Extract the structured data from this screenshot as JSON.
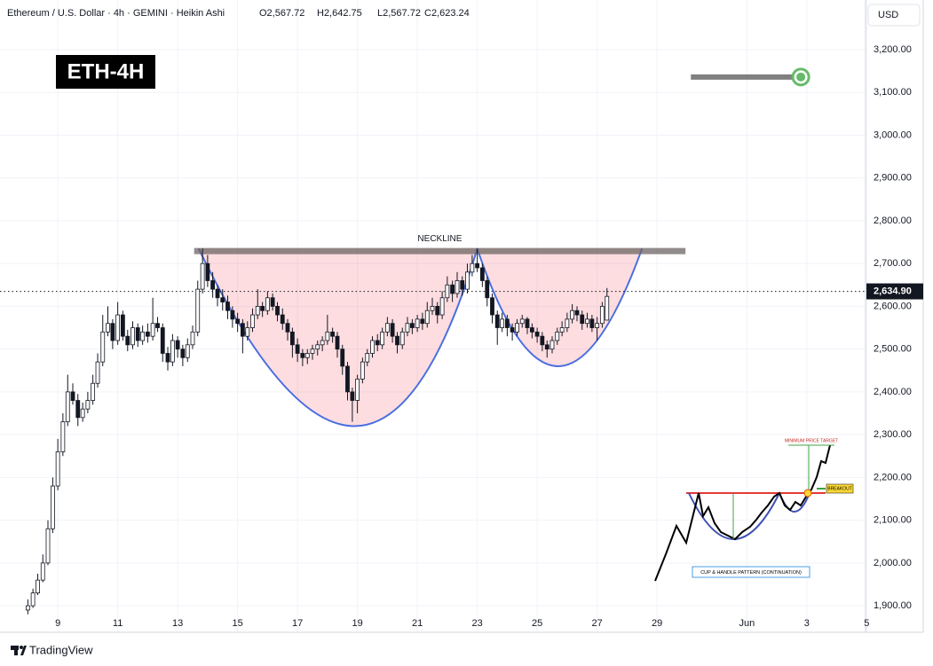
{
  "chart_data": {
    "type": "candlestick",
    "title": "Ethereum / U.S. Dollar · 4h · GEMINI · Heikin Ashi",
    "ohlc_labels": [
      "O2,567.72",
      "H2,642.75",
      "L2,567.72",
      "C2,623.24"
    ],
    "currency": "USD",
    "color_up": "#ffffff",
    "color_down": "#131722",
    "grid": true,
    "xlim": [
      7.07,
      35.96
    ],
    "ylim": [
      1838,
      3316
    ],
    "xticks": [
      9,
      11,
      13,
      15,
      17,
      19,
      21,
      23,
      25,
      27,
      29,
      {
        "value": 32,
        "label": "Jun"
      },
      {
        "value": 34,
        "label": "3"
      },
      {
        "value": 36,
        "label": "5"
      }
    ],
    "yticks": [
      {
        "value": 1900,
        "label": "1,900.00"
      },
      {
        "value": 2000,
        "label": "2,000.00"
      },
      {
        "value": 2100,
        "label": "2,100.00"
      },
      {
        "value": 2200,
        "label": "2,200.00"
      },
      {
        "value": 2300,
        "label": "2,300.00"
      },
      {
        "value": 2400,
        "label": "2,400.00"
      },
      {
        "value": 2500,
        "label": "2,500.00"
      },
      {
        "value": 2600,
        "label": "2,600.00"
      },
      {
        "value": 2700,
        "label": "2,700.00"
      },
      {
        "value": 2800,
        "label": "2,800.00"
      },
      {
        "value": 2900,
        "label": "2,900.00"
      },
      {
        "value": 3000,
        "label": "3,000.00"
      },
      {
        "value": 3100,
        "label": "3,100.00"
      },
      {
        "value": 3200,
        "label": "3,200.00"
      }
    ],
    "last_price": {
      "value": 2634.9,
      "label": "2,634.90"
    },
    "x": [
      8,
      8.17,
      8.33,
      8.5,
      8.67,
      8.83,
      9,
      9.17,
      9.33,
      9.5,
      9.67,
      9.83,
      10,
      10.17,
      10.33,
      10.5,
      10.67,
      10.83,
      11,
      11.17,
      11.33,
      11.5,
      11.67,
      11.83,
      12,
      12.17,
      12.33,
      12.5,
      12.67,
      12.83,
      13,
      13.17,
      13.33,
      13.5,
      13.67,
      13.83,
      14,
      14.17,
      14.33,
      14.5,
      14.67,
      14.83,
      15,
      15.17,
      15.33,
      15.5,
      15.67,
      15.83,
      16,
      16.17,
      16.33,
      16.5,
      16.67,
      16.83,
      17,
      17.17,
      17.33,
      17.5,
      17.67,
      17.83,
      18,
      18.17,
      18.33,
      18.5,
      18.67,
      18.83,
      19,
      19.17,
      19.33,
      19.5,
      19.67,
      19.83,
      20,
      20.17,
      20.33,
      20.5,
      20.67,
      20.83,
      21,
      21.17,
      21.33,
      21.5,
      21.67,
      21.83,
      22,
      22.17,
      22.33,
      22.5,
      22.67,
      22.83,
      23,
      23.17,
      23.33,
      23.5,
      23.67,
      23.83,
      24,
      24.17,
      24.33,
      24.5,
      24.67,
      24.83,
      25,
      25.17,
      25.33,
      25.5,
      25.67,
      25.83,
      26,
      26.17,
      26.33,
      26.5,
      26.67,
      26.83,
      27,
      27.17,
      27.33
    ],
    "ohlc": [
      [
        1890,
        1915,
        1880,
        1900
      ],
      [
        1900,
        1940,
        1895,
        1930
      ],
      [
        1930,
        1975,
        1925,
        1960
      ],
      [
        1960,
        2020,
        1955,
        2000
      ],
      [
        2000,
        2100,
        1995,
        2080
      ],
      [
        2080,
        2200,
        2070,
        2180
      ],
      [
        2180,
        2290,
        2170,
        2260
      ],
      [
        2260,
        2350,
        2250,
        2330
      ],
      [
        2330,
        2440,
        2320,
        2400
      ],
      [
        2400,
        2420,
        2370,
        2380
      ],
      [
        2380,
        2395,
        2320,
        2340
      ],
      [
        2340,
        2375,
        2330,
        2360
      ],
      [
        2360,
        2400,
        2350,
        2380
      ],
      [
        2380,
        2440,
        2370,
        2420
      ],
      [
        2420,
        2490,
        2410,
        2470
      ],
      [
        2470,
        2580,
        2460,
        2540
      ],
      [
        2540,
        2600,
        2530,
        2560
      ],
      [
        2560,
        2570,
        2500,
        2520
      ],
      [
        2520,
        2610,
        2510,
        2580
      ],
      [
        2580,
        2590,
        2520,
        2530
      ],
      [
        2530,
        2545,
        2495,
        2510
      ],
      [
        2510,
        2565,
        2500,
        2550
      ],
      [
        2550,
        2560,
        2505,
        2520
      ],
      [
        2520,
        2555,
        2510,
        2540
      ],
      [
        2540,
        2560,
        2515,
        2530
      ],
      [
        2530,
        2620,
        2520,
        2560
      ],
      [
        2560,
        2575,
        2540,
        2550
      ],
      [
        2550,
        2560,
        2470,
        2490
      ],
      [
        2490,
        2505,
        2450,
        2470
      ],
      [
        2470,
        2535,
        2460,
        2520
      ],
      [
        2520,
        2530,
        2480,
        2500
      ],
      [
        2500,
        2510,
        2460,
        2480
      ],
      [
        2480,
        2525,
        2470,
        2510
      ],
      [
        2510,
        2555,
        2500,
        2540
      ],
      [
        2540,
        2660,
        2530,
        2640
      ],
      [
        2640,
        2735,
        2630,
        2700
      ],
      [
        2700,
        2720,
        2645,
        2660
      ],
      [
        2660,
        2680,
        2620,
        2640
      ],
      [
        2640,
        2650,
        2600,
        2620
      ],
      [
        2620,
        2640,
        2590,
        2610
      ],
      [
        2610,
        2625,
        2570,
        2590
      ],
      [
        2590,
        2600,
        2550,
        2570
      ],
      [
        2570,
        2585,
        2540,
        2560
      ],
      [
        2560,
        2570,
        2490,
        2530
      ],
      [
        2530,
        2565,
        2520,
        2550
      ],
      [
        2550,
        2595,
        2540,
        2580
      ],
      [
        2580,
        2640,
        2570,
        2600
      ],
      [
        2600,
        2610,
        2575,
        2590
      ],
      [
        2590,
        2635,
        2580,
        2620
      ],
      [
        2620,
        2630,
        2590,
        2600
      ],
      [
        2600,
        2610,
        2565,
        2580
      ],
      [
        2580,
        2595,
        2545,
        2560
      ],
      [
        2560,
        2570,
        2520,
        2540
      ],
      [
        2540,
        2550,
        2480,
        2510
      ],
      [
        2510,
        2525,
        2470,
        2490
      ],
      [
        2490,
        2500,
        2460,
        2480
      ],
      [
        2480,
        2500,
        2465,
        2490
      ],
      [
        2490,
        2510,
        2475,
        2500
      ],
      [
        2500,
        2520,
        2485,
        2510
      ],
      [
        2510,
        2530,
        2495,
        2520
      ],
      [
        2520,
        2580,
        2510,
        2540
      ],
      [
        2540,
        2550,
        2515,
        2530
      ],
      [
        2530,
        2540,
        2480,
        2500
      ],
      [
        2500,
        2510,
        2440,
        2460
      ],
      [
        2460,
        2470,
        2380,
        2400
      ],
      [
        2400,
        2410,
        2330,
        2380
      ],
      [
        2380,
        2440,
        2350,
        2430
      ],
      [
        2430,
        2480,
        2420,
        2470
      ],
      [
        2470,
        2500,
        2460,
        2490
      ],
      [
        2490,
        2530,
        2480,
        2520
      ],
      [
        2520,
        2535,
        2495,
        2510
      ],
      [
        2510,
        2550,
        2500,
        2540
      ],
      [
        2540,
        2575,
        2530,
        2560
      ],
      [
        2560,
        2570,
        2515,
        2530
      ],
      [
        2530,
        2540,
        2490,
        2510
      ],
      [
        2510,
        2550,
        2500,
        2540
      ],
      [
        2540,
        2575,
        2530,
        2560
      ],
      [
        2560,
        2570,
        2535,
        2550
      ],
      [
        2550,
        2580,
        2540,
        2570
      ],
      [
        2570,
        2585,
        2545,
        2560
      ],
      [
        2560,
        2610,
        2550,
        2590
      ],
      [
        2590,
        2620,
        2580,
        2600
      ],
      [
        2600,
        2610,
        2560,
        2580
      ],
      [
        2580,
        2635,
        2570,
        2620
      ],
      [
        2620,
        2670,
        2610,
        2650
      ],
      [
        2650,
        2660,
        2610,
        2630
      ],
      [
        2630,
        2680,
        2620,
        2660
      ],
      [
        2660,
        2670,
        2625,
        2640
      ],
      [
        2640,
        2700,
        2630,
        2680
      ],
      [
        2680,
        2720,
        2670,
        2700
      ],
      [
        2700,
        2735,
        2680,
        2690
      ],
      [
        2690,
        2700,
        2645,
        2660
      ],
      [
        2660,
        2670,
        2600,
        2620
      ],
      [
        2620,
        2630,
        2560,
        2580
      ],
      [
        2580,
        2590,
        2510,
        2550
      ],
      [
        2550,
        2585,
        2540,
        2570
      ],
      [
        2570,
        2580,
        2530,
        2550
      ],
      [
        2550,
        2560,
        2520,
        2540
      ],
      [
        2540,
        2570,
        2530,
        2560
      ],
      [
        2560,
        2580,
        2550,
        2570
      ],
      [
        2570,
        2575,
        2535,
        2550
      ],
      [
        2550,
        2560,
        2525,
        2540
      ],
      [
        2540,
        2550,
        2515,
        2530
      ],
      [
        2530,
        2540,
        2495,
        2510
      ],
      [
        2510,
        2520,
        2480,
        2500
      ],
      [
        2500,
        2530,
        2490,
        2520
      ],
      [
        2520,
        2550,
        2510,
        2540
      ],
      [
        2540,
        2565,
        2530,
        2550
      ],
      [
        2550,
        2585,
        2540,
        2570
      ],
      [
        2570,
        2605,
        2560,
        2590
      ],
      [
        2590,
        2600,
        2565,
        2580
      ],
      [
        2580,
        2590,
        2545,
        2560
      ],
      [
        2560,
        2585,
        2550,
        2570
      ],
      [
        2570,
        2580,
        2540,
        2550
      ],
      [
        2550,
        2575,
        2520,
        2560
      ],
      [
        2560,
        2610,
        2550,
        2600
      ],
      [
        2567.72,
        2642.75,
        2567.72,
        2623.24
      ]
    ],
    "annotations": {
      "label": "ETH-4H",
      "neckline": {
        "label": "NECKLINE",
        "value": 2729,
        "x": [
          13.55,
          29.95
        ]
      },
      "target": {
        "value": 3136,
        "x": [
          30.13,
          33.8
        ]
      },
      "cup": {
        "x": [
          13.7,
          18.9,
          23.0
        ],
        "y": [
          2735,
          2320,
          2735
        ]
      },
      "handle": {
        "x": [
          23.0,
          25.7,
          28.5
        ],
        "y": [
          2735,
          2460,
          2735
        ]
      }
    }
  },
  "inset": {
    "target": "MINIMUM PRICE TARGET",
    "breakout": "BREAKOUT",
    "caption": "CUP & HANDLE PATTERN (CONTINUATION)"
  },
  "branding": "TradingView"
}
